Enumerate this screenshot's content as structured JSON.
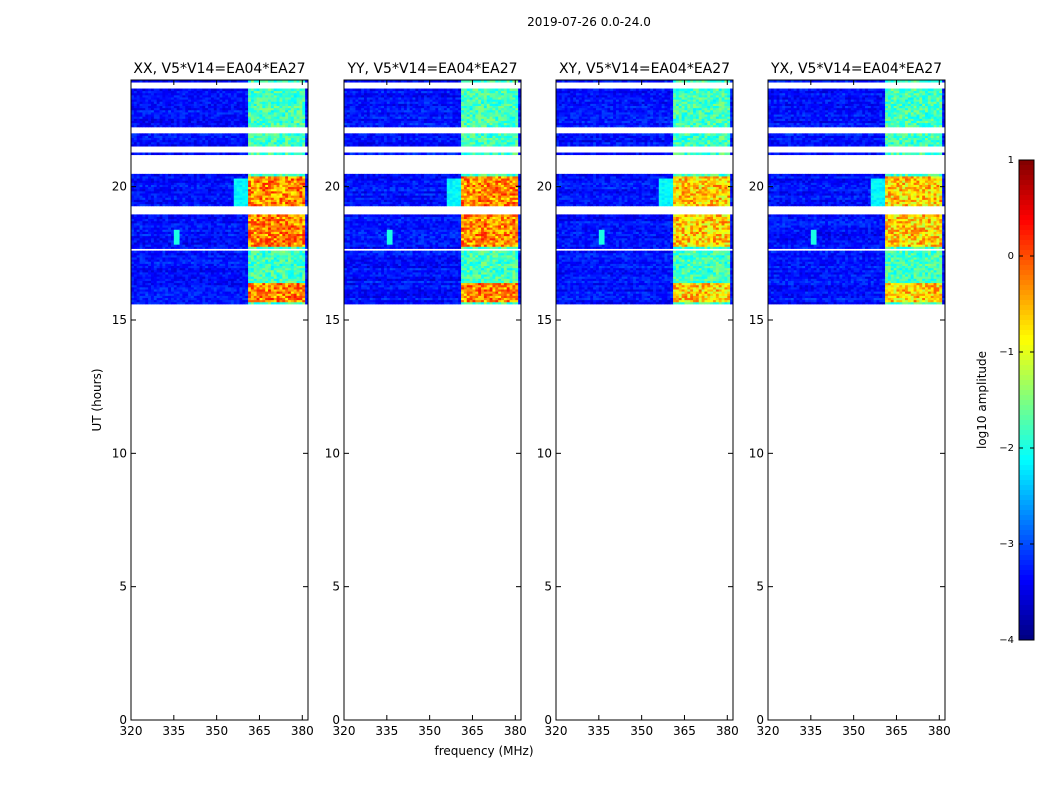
{
  "figure_title": "2019-07-26 0.0-24.0",
  "chart_data": {
    "type": "heatmap",
    "title": "2019-07-26 0.0-24.0",
    "xlabel": "frequency (MHz)",
    "ylabel": "UT (hours)",
    "xlim": [
      320,
      382
    ],
    "ylim": [
      0,
      24
    ],
    "x_ticks": [
      320,
      335,
      350,
      365,
      380
    ],
    "y_ticks": [
      0,
      5,
      10,
      15,
      20
    ],
    "panels": [
      {
        "title": "XX, V5*V14=EA04*EA27",
        "name": "xx"
      },
      {
        "title": "YY, V5*V14=EA04*EA27",
        "name": "yy"
      },
      {
        "title": "XY, V5*V14=EA04*EA27",
        "name": "xy"
      },
      {
        "title": "YX, V5*V14=EA04*EA27",
        "name": "yx"
      }
    ],
    "data_time_range_hours": [
      15.6,
      24.0
    ],
    "gap_hours": [
      [
        22.0,
        22.2
      ],
      [
        21.3,
        21.5
      ],
      [
        20.5,
        21.2
      ],
      [
        19.0,
        19.3
      ],
      [
        17.6,
        17.7
      ],
      [
        23.7,
        23.9
      ]
    ],
    "rfi_channel_centers_mhz": [
      363.5,
      368.5,
      373.5,
      378.5
    ],
    "rfi_channel_width_mhz": 4,
    "colorbar": {
      "label": "log10 amplitude",
      "range": [
        -4,
        1
      ],
      "ticks": [
        1,
        0,
        -1,
        -2,
        -3,
        -4
      ],
      "tick_labels": [
        "1",
        "0",
        "−1",
        "−2",
        "−3",
        "−4"
      ],
      "colormap": [
        "#00007f",
        "#0000ff",
        "#007fff",
        "#00ffff",
        "#7fff7f",
        "#ffff00",
        "#ff7f00",
        "#ff0000",
        "#7f0000"
      ]
    }
  }
}
